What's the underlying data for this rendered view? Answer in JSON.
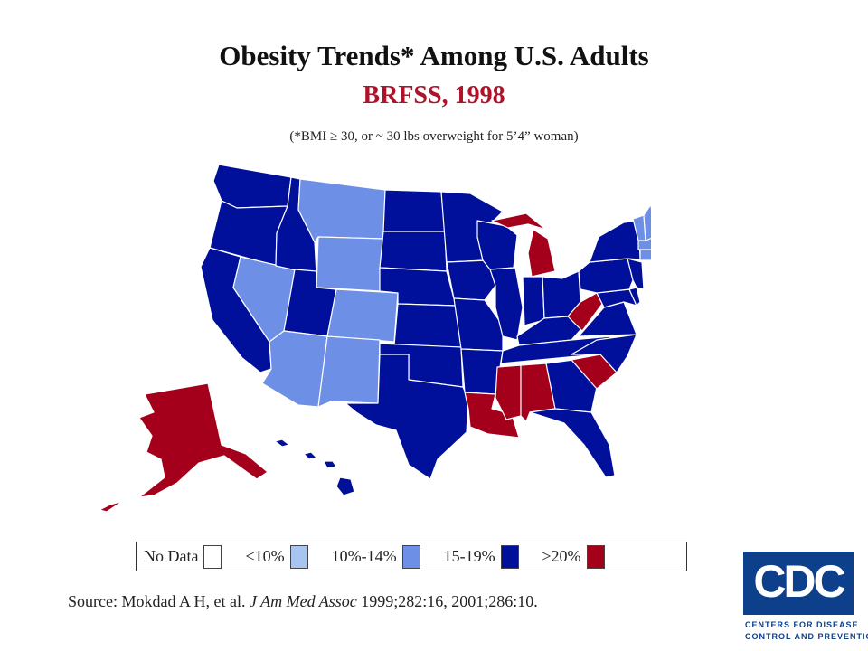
{
  "header": {
    "title": "Obesity Trends* Among U.S. Adults",
    "subtitle": "BRFSS, 1998",
    "note": "(*BMI ≥ 30, or ~ 30 lbs overweight for 5’4” woman)"
  },
  "colors": {
    "no_data": "#ffffff",
    "lt10": "#a8c5f0",
    "10_14": "#6e8fe6",
    "15_19": "#00109a",
    "ge20": "#a5001b",
    "border": "#ffffff"
  },
  "legend": {
    "items": [
      {
        "label": "No Data",
        "color_key": "no_data"
      },
      {
        "label": "<10%",
        "color_key": "lt10"
      },
      {
        "label": "10%-14%",
        "color_key": "10_14"
      },
      {
        "label": "15-19%",
        "color_key": "15_19"
      },
      {
        "label": "≥20%",
        "color_key": "ge20"
      }
    ]
  },
  "map": {
    "states": {
      "WA": "15_19",
      "OR": "15_19",
      "CA": "15_19",
      "NV": "10_14",
      "ID": "15_19",
      "MT": "10_14",
      "WY": "10_14",
      "UT": "15_19",
      "AZ": "10_14",
      "CO": "10_14",
      "NM": "10_14",
      "ND": "15_19",
      "SD": "15_19",
      "NE": "15_19",
      "KS": "15_19",
      "OK": "15_19",
      "TX": "15_19",
      "MN": "15_19",
      "IA": "15_19",
      "MO": "15_19",
      "AR": "15_19",
      "LA": "ge20",
      "WI": "15_19",
      "IL": "15_19",
      "MI": "ge20",
      "IN": "15_19",
      "OH": "15_19",
      "KY": "15_19",
      "TN": "15_19",
      "MS": "ge20",
      "AL": "ge20",
      "GA": "15_19",
      "FL": "15_19",
      "SC": "ge20",
      "NC": "15_19",
      "VA": "15_19",
      "WV": "ge20",
      "MD": "15_19",
      "DE": "15_19",
      "PA": "15_19",
      "NJ": "15_19",
      "NY": "15_19",
      "CT": "10_14",
      "RI": "15_19",
      "MA": "10_14",
      "VT": "10_14",
      "NH": "10_14",
      "ME": "15_19",
      "AK": "ge20",
      "HI": "15_19"
    }
  },
  "source": {
    "prefix": "Source: Mokdad A H, et al. ",
    "journal": "J Am Med Assoc",
    "suffix": " 1999;282:16,  2001;286:10."
  },
  "logo": {
    "letters": "CDC",
    "line1": "CENTERS FOR DISEASE",
    "line2": "CONTROL AND PREVENTION"
  }
}
